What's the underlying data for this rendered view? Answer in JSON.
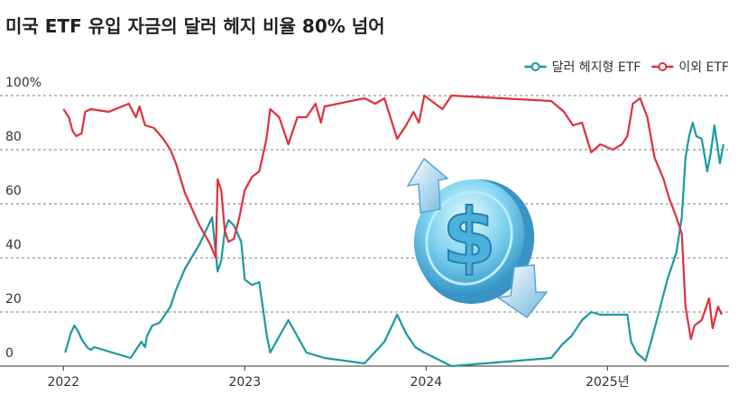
{
  "chart_data": {
    "type": "line",
    "title": "미국 ETF 유입 자금의 달러 헤지 비율 80% 넘어",
    "xlim": [
      2021.7,
      2025.67
    ],
    "ylim": [
      0,
      100
    ],
    "xticks": [
      2022,
      2023,
      2024,
      {
        "value": 2025,
        "label": "2025년"
      }
    ],
    "yticks": [
      0,
      20,
      40,
      60,
      80,
      {
        "value": 100,
        "label": "100%"
      }
    ],
    "grid": true,
    "legend": "top-right",
    "series": [
      {
        "name": "달러 헤지형 ETF",
        "color": "#1a9aa0",
        "x": [
          2022.01,
          2022.04,
          2022.06,
          2022.08,
          2022.1,
          2022.13,
          2022.15,
          2022.17,
          2022.37,
          2022.4,
          2022.43,
          2022.45,
          2022.46,
          2022.49,
          2022.53,
          2022.56,
          2022.59,
          2022.62,
          2022.67,
          2022.75,
          2022.82,
          2022.85,
          2022.87,
          2022.89,
          2022.91,
          2022.94,
          2022.96,
          2022.98,
          2023.0,
          2023.04,
          2023.08,
          2023.12,
          2023.14,
          2023.24,
          2023.34,
          2023.44,
          2023.66,
          2023.77,
          2023.84,
          2023.89,
          2023.94,
          2023.99,
          2024.14,
          2024.69,
          2024.75,
          2024.8,
          2024.86,
          2024.91,
          2024.96,
          2025.01,
          2025.06,
          2025.11,
          2025.13,
          2025.16,
          2025.21,
          2025.24,
          2025.28,
          2025.33,
          2025.38,
          2025.41,
          2025.43,
          2025.45,
          2025.47,
          2025.49,
          2025.52,
          2025.55,
          2025.57,
          2025.59,
          2025.62,
          2025.64
        ],
        "values": [
          5,
          12,
          15,
          13,
          10,
          7,
          6,
          7,
          3,
          6,
          9,
          7,
          11,
          15,
          16,
          19,
          22,
          28,
          36,
          45,
          55,
          35,
          39,
          50,
          54,
          52,
          49,
          46,
          32,
          30,
          31,
          12,
          5,
          17,
          5,
          3,
          1,
          9,
          19,
          12,
          7,
          5,
          0,
          3,
          8,
          11,
          17,
          20,
          19,
          19,
          19,
          19,
          9,
          5,
          2,
          9,
          19,
          32,
          42,
          55,
          77,
          85,
          90,
          85,
          84,
          72,
          79,
          89,
          75,
          82
        ]
      },
      {
        "name": "이외 ETF",
        "color": "#e0303a",
        "x": [
          2022.0,
          2022.03,
          2022.05,
          2022.07,
          2022.1,
          2022.12,
          2022.15,
          2022.25,
          2022.36,
          2022.4,
          2022.42,
          2022.45,
          2022.5,
          2022.55,
          2022.59,
          2022.62,
          2022.67,
          2022.75,
          2022.81,
          2022.84,
          2022.85,
          2022.87,
          2022.89,
          2022.91,
          2022.94,
          2022.97,
          2023.0,
          2023.04,
          2023.08,
          2023.12,
          2023.14,
          2023.19,
          2023.24,
          2023.29,
          2023.34,
          2023.39,
          2023.42,
          2023.44,
          2023.66,
          2023.72,
          2023.77,
          2023.84,
          2023.89,
          2023.93,
          2023.96,
          2023.99,
          2024.09,
          2024.14,
          2024.69,
          2024.76,
          2024.81,
          2024.86,
          2024.91,
          2024.96,
          2025.03,
          2025.08,
          2025.11,
          2025.14,
          2025.18,
          2025.22,
          2025.26,
          2025.31,
          2025.34,
          2025.38,
          2025.41,
          2025.43,
          2025.46,
          2025.48,
          2025.52,
          2025.56,
          2025.58,
          2025.61,
          2025.63
        ],
        "values": [
          95,
          92,
          87,
          85,
          86,
          94,
          95,
          94,
          97,
          92,
          96,
          89,
          88,
          84,
          80,
          75,
          64,
          52,
          45,
          40,
          69,
          65,
          50,
          46,
          47,
          55,
          65,
          70,
          72,
          84,
          95,
          92,
          82,
          92,
          92,
          97,
          90,
          96,
          99,
          97,
          99,
          84,
          89,
          94,
          90,
          100,
          95,
          100,
          98,
          94,
          89,
          90,
          79,
          82,
          80,
          82,
          85,
          97,
          99,
          92,
          77,
          69,
          62,
          55,
          49,
          22,
          10,
          15,
          17,
          25,
          14,
          22,
          19
        ]
      }
    ]
  }
}
